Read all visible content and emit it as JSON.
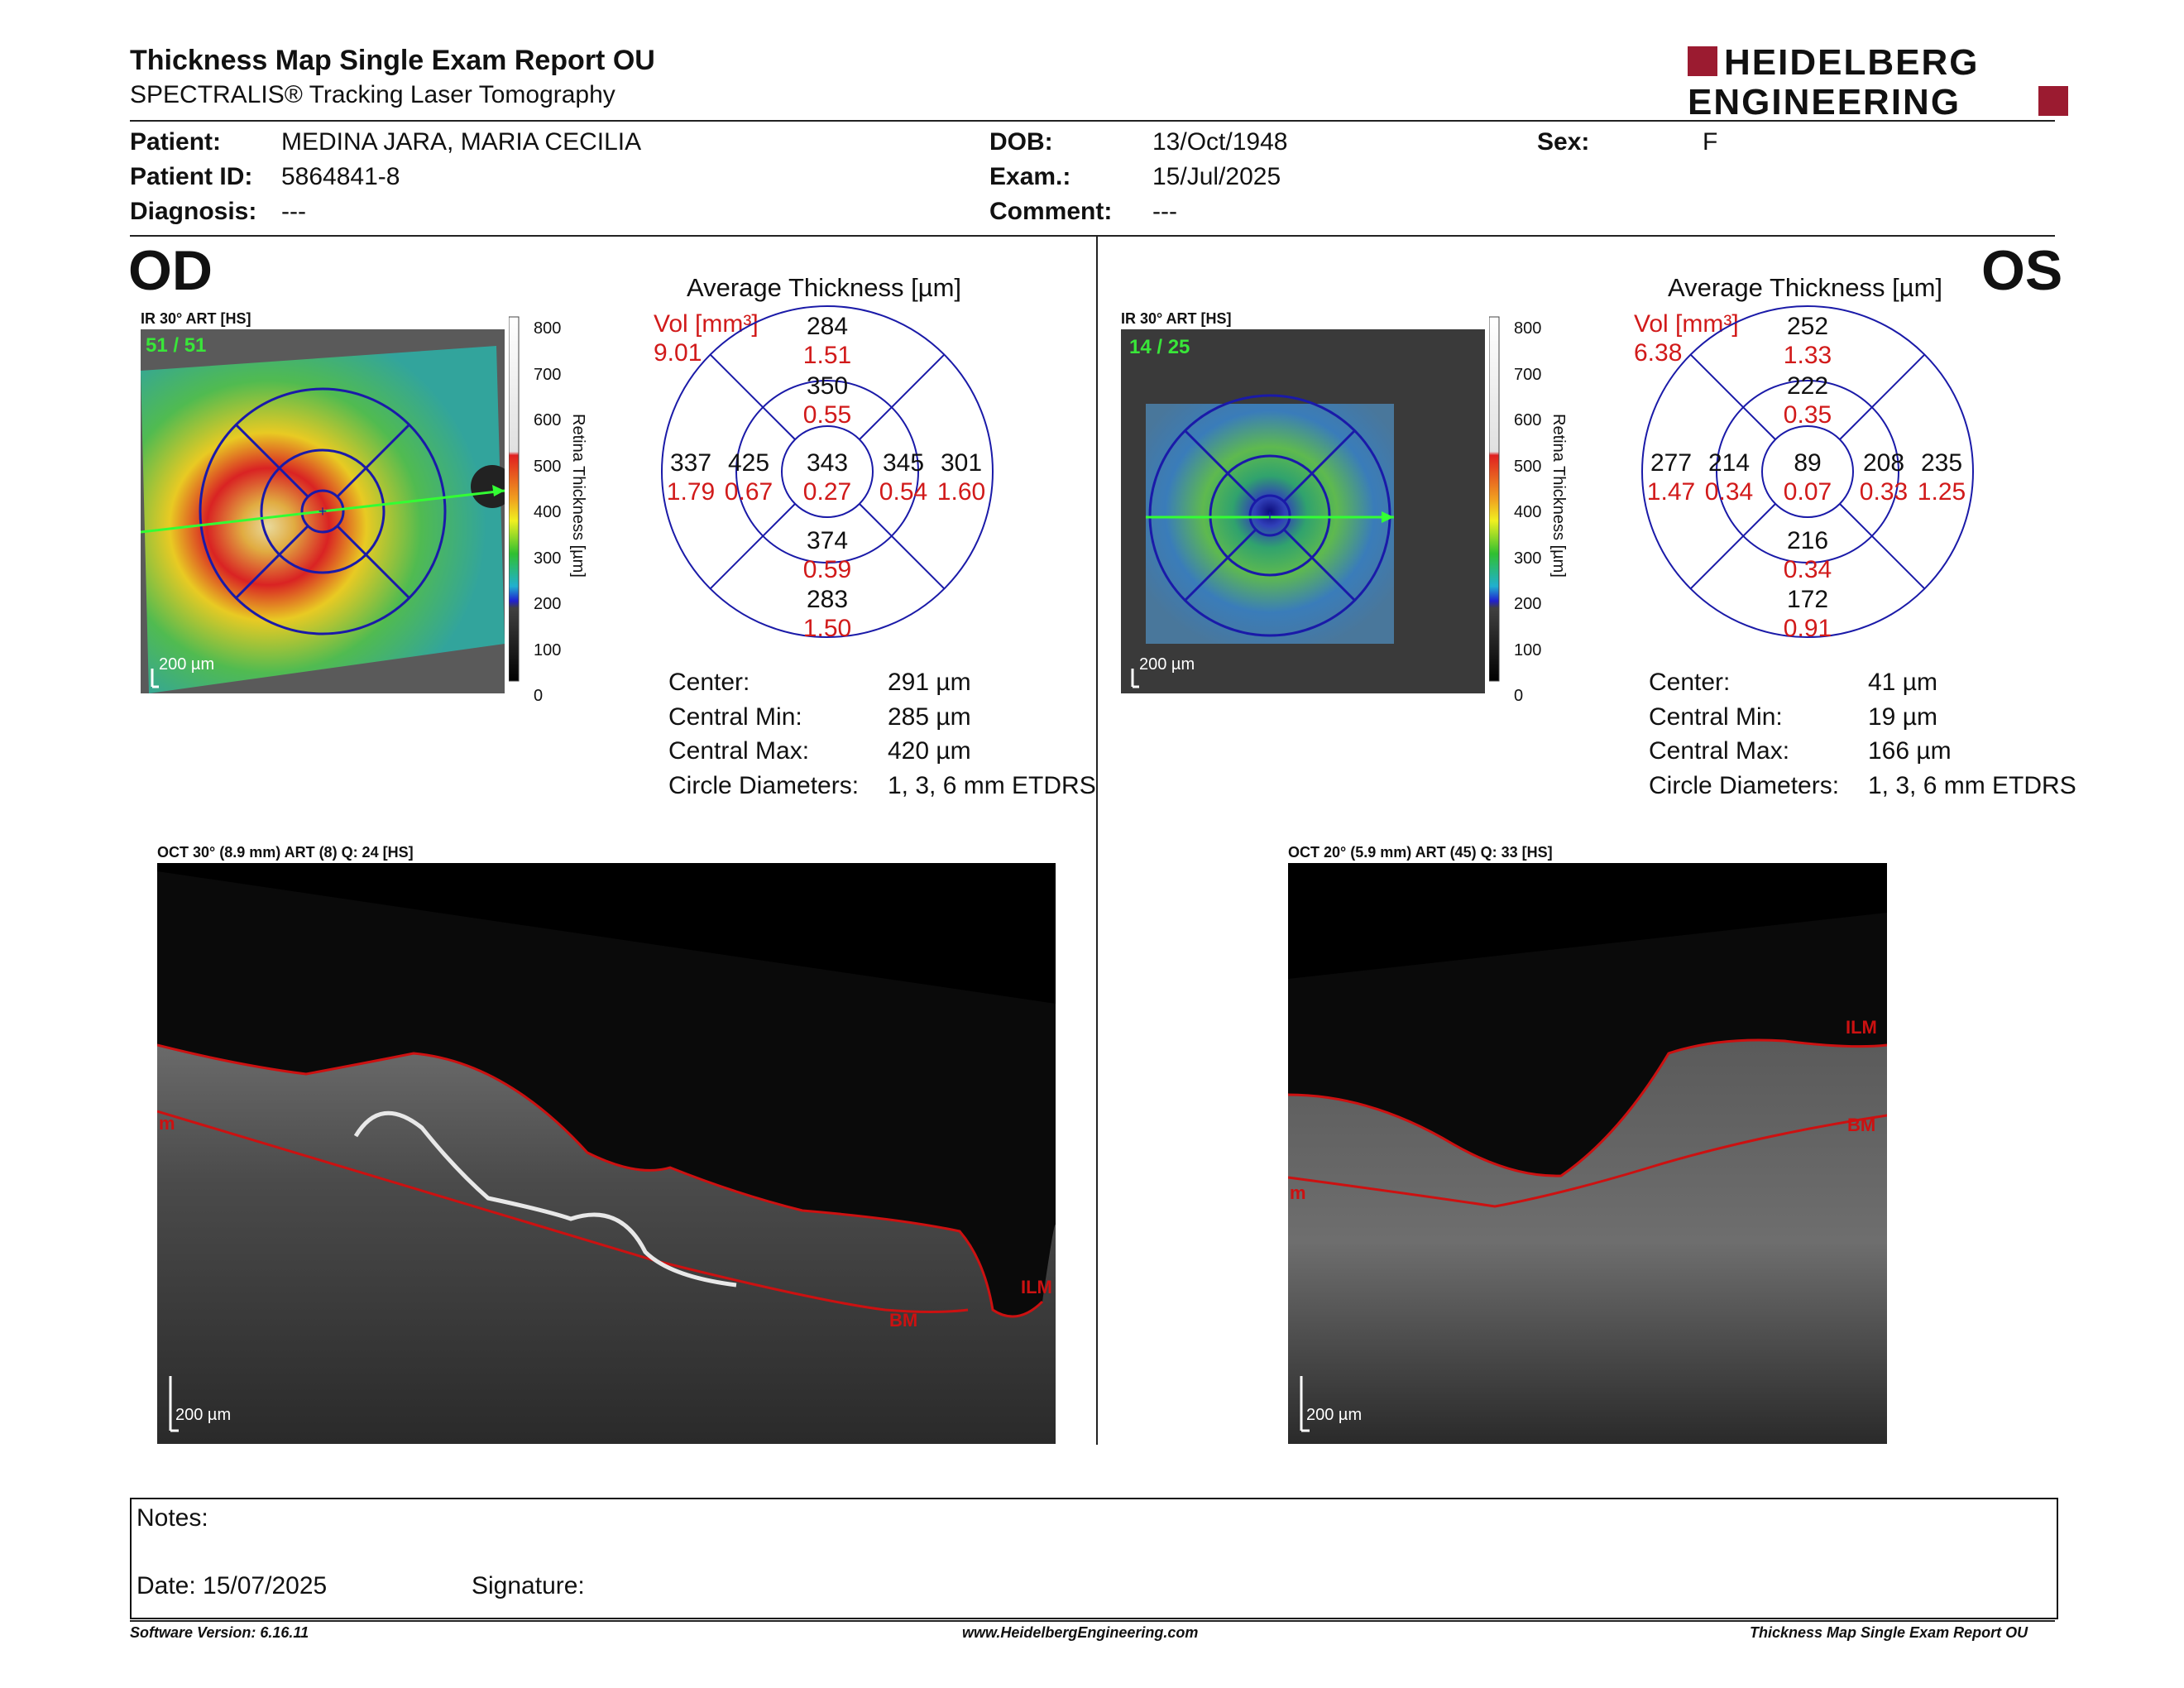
{
  "header": {
    "title": "Thickness Map Single Exam Report OU",
    "subtitle": "SPECTRALIS® Tracking Laser Tomography",
    "logo_line1": "HEIDELBERG",
    "logo_line2": "ENGINEERING",
    "logo_color": "#9b1b30"
  },
  "patient": {
    "patient_label": "Patient:",
    "patient_value": "MEDINA JARA, MARIA CECILIA",
    "id_label": "Patient ID:",
    "id_value": "5864841-8",
    "diag_label": "Diagnosis:",
    "diag_value": "---",
    "dob_label": "DOB:",
    "dob_value": "13/Oct/1948",
    "exam_label": "Exam.:",
    "exam_value": "15/Jul/2025",
    "comment_label": "Comment:",
    "comment_value": "---",
    "sex_label": "Sex:",
    "sex_value": "F"
  },
  "od": {
    "eye": "OD",
    "ir_label": "IR 30° ART [HS]",
    "frames": "51 / 51",
    "scale_bar": "200 µm",
    "avg_title": "Average Thickness [µm]",
    "vol_label": "Vol [mm³]",
    "vol_value": "9.01",
    "grid": {
      "superior_outer": "284",
      "superior_outer_vol": "1.51",
      "superior_inner": "350",
      "superior_inner_vol": "0.55",
      "temporal_outer": "337",
      "temporal_outer_vol": "1.79",
      "temporal_inner": "425",
      "temporal_inner_vol": "0.67",
      "center": "343",
      "center_vol": "0.27",
      "nasal_inner": "345",
      "nasal_inner_vol": "0.54",
      "nasal_outer": "301",
      "nasal_outer_vol": "1.60",
      "inferior_inner": "374",
      "inferior_inner_vol": "0.59",
      "inferior_outer": "283",
      "inferior_outer_vol": "1.50"
    },
    "stats": {
      "center_label": "Center:",
      "center_value": "291 µm",
      "min_label": "Central Min:",
      "min_value": "285 µm",
      "max_label": "Central Max:",
      "max_value": "420 µm",
      "diam_label": "Circle Diameters:",
      "diam_value": "1, 3, 6 mm ETDRS"
    },
    "oct_label": "OCT 30° (8.9 mm) ART (8) Q: 24 [HS]",
    "oct_scale": "200 µm",
    "ilm_label": "ILM",
    "bm_label": "BM",
    "m_label": "m"
  },
  "os": {
    "eye": "OS",
    "ir_label": "IR 30° ART [HS]",
    "frames": "14 / 25",
    "scale_bar": "200 µm",
    "avg_title": "Average Thickness [µm]",
    "vol_label": "Vol [mm³]",
    "vol_value": "6.38",
    "grid": {
      "superior_outer": "252",
      "superior_outer_vol": "1.33",
      "superior_inner": "222",
      "superior_inner_vol": "0.35",
      "temporal_outer": "277",
      "temporal_outer_vol": "1.47",
      "temporal_inner": "214",
      "temporal_inner_vol": "0.34",
      "center": "89",
      "center_vol": "0.07",
      "nasal_inner": "208",
      "nasal_inner_vol": "0.33",
      "nasal_outer": "235",
      "nasal_outer_vol": "1.25",
      "inferior_inner": "216",
      "inferior_inner_vol": "0.34",
      "inferior_outer": "172",
      "inferior_outer_vol": "0.91"
    },
    "stats": {
      "center_label": "Center:",
      "center_value": "41 µm",
      "min_label": "Central Min:",
      "min_value": "19 µm",
      "max_label": "Central Max:",
      "max_value": "166 µm",
      "diam_label": "Circle Diameters:",
      "diam_value": "1, 3, 6 mm ETDRS"
    },
    "oct_label": "OCT 20° (5.9 mm) ART (45) Q: 33 [HS]",
    "oct_scale": "200 µm",
    "ilm_label": "ILM",
    "bm_label": "BM",
    "m_label": "m"
  },
  "colorscale": {
    "title": "Retina Thickness [µm]",
    "ticks": [
      "800",
      "700",
      "600",
      "500",
      "400",
      "300",
      "200",
      "100",
      "0"
    ]
  },
  "notes": {
    "notes_label": "Notes:",
    "date_label": "Date: 15/07/2025",
    "signature_label": "Signature:"
  },
  "footer": {
    "software": "Software Version: 6.16.11",
    "website": "www.HeidelbergEngineering.com",
    "report": "Thickness Map Single Exam Report OU"
  },
  "colors": {
    "grid_blue": "#1a1aa8",
    "volume_red": "#d11a1a",
    "frames_green": "#39e639",
    "layer_red": "#cc1111"
  }
}
